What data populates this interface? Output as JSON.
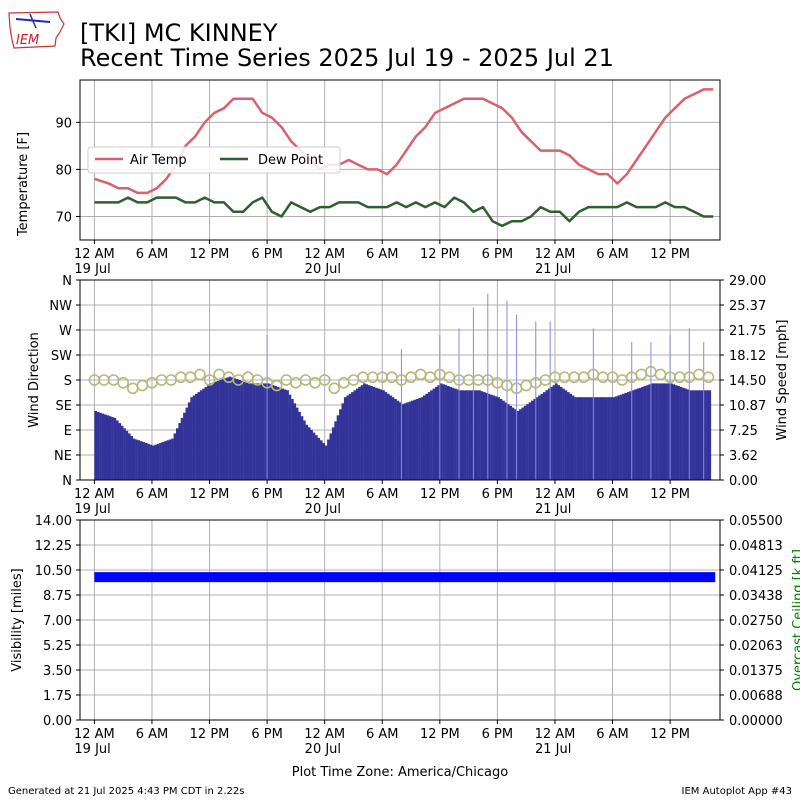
{
  "header": {
    "logo_text": "IEM",
    "station_title": "[TKI] MC KINNEY",
    "subtitle": "Recent Time Series 2025 Jul 19 - 2025 Jul 21"
  },
  "footer": {
    "generated": "Generated at 21 Jul 2025 4:43 PM CDT in 2.22s",
    "app": "IEM Autoplot App #43",
    "timezone_label": "Plot Time Zone: America/Chicago"
  },
  "colors": {
    "air_temp": "#d9626a",
    "dew_point": "#2f5f2f",
    "wind_speed": "#33339a",
    "wind_gust": "#8888e8",
    "wind_direction": "#b4b87a",
    "visibility": "#0000ff",
    "ceiling_label": "#008000",
    "grid": "#b0b0b0"
  },
  "time_axis": {
    "tick_labels": [
      "12 AM",
      "6 AM",
      "12 PM",
      "6 PM",
      "12 AM",
      "6 AM",
      "12 PM",
      "6 PM",
      "12 AM",
      "6 AM",
      "12 PM"
    ],
    "date_labels": [
      "19 Jul",
      "20 Jul",
      "21 Jul"
    ]
  },
  "chart_data": [
    {
      "type": "line",
      "ylabel": "Temperature [F]",
      "yticks": [
        70,
        80,
        90
      ],
      "ylim": [
        65,
        99
      ],
      "x_unit": "hours since 2025-07-19 00:00 CDT",
      "xlim": [
        -1.5,
        65.2
      ],
      "grid": true,
      "legend": "upper-left",
      "series": [
        {
          "name": "Air Temp",
          "x": [
            0,
            1.5,
            2.5,
            3.5,
            4.5,
            5.5,
            6.5,
            7.5,
            8.5,
            9.5,
            10.5,
            11.5,
            12.5,
            13.5,
            14.5,
            15.5,
            16.5,
            17.5,
            18.5,
            19.5,
            20.5,
            21.5,
            22.5,
            23.5,
            24.5,
            25.5,
            26.5,
            27.5,
            28.5,
            29.5,
            30.5,
            31.5,
            32.5,
            33.5,
            34.5,
            35.5,
            36.5,
            37.5,
            38.5,
            39.5,
            40.5,
            41.5,
            42.5,
            43.5,
            44.5,
            45.5,
            46.5,
            47.5,
            48.5,
            49.5,
            50.5,
            51.5,
            52.5,
            53.5,
            54.5,
            55.5,
            56.5,
            57.5,
            58.5,
            59.5,
            60.5,
            61.5,
            62.5,
            63.5,
            64.5
          ],
          "values": [
            78,
            77,
            76,
            76,
            75,
            75,
            76,
            78,
            81,
            85,
            87,
            90,
            92,
            93,
            95,
            95,
            95,
            92,
            91,
            89,
            86,
            84,
            82,
            80,
            81,
            81,
            82,
            81,
            80,
            80,
            79,
            81,
            84,
            87,
            89,
            92,
            93,
            94,
            95,
            95,
            95,
            94,
            93,
            91,
            88,
            86,
            84,
            84,
            84,
            83,
            81,
            80,
            79,
            79,
            77,
            79,
            82,
            85,
            88,
            91,
            93,
            95,
            96,
            97,
            97
          ]
        },
        {
          "name": "Dew Point",
          "x": [
            0,
            1.5,
            2.5,
            3.5,
            4.5,
            5.5,
            6.5,
            7.5,
            8.5,
            9.5,
            10.5,
            11.5,
            12.5,
            13.5,
            14.5,
            15.5,
            16.5,
            17.5,
            18.5,
            19.5,
            20.5,
            21.5,
            22.5,
            23.5,
            24.5,
            25.5,
            26.5,
            27.5,
            28.5,
            29.5,
            30.5,
            31.5,
            32.5,
            33.5,
            34.5,
            35.5,
            36.5,
            37.5,
            38.5,
            39.5,
            40.5,
            41.5,
            42.5,
            43.5,
            44.5,
            45.5,
            46.5,
            47.5,
            48.5,
            49.5,
            50.5,
            51.5,
            52.5,
            53.5,
            54.5,
            55.5,
            56.5,
            57.5,
            58.5,
            59.5,
            60.5,
            61.5,
            62.5,
            63.5,
            64.5
          ],
          "values": [
            73,
            73,
            73,
            74,
            73,
            73,
            74,
            74,
            74,
            73,
            73,
            74,
            73,
            73,
            71,
            71,
            73,
            74,
            71,
            70,
            73,
            72,
            71,
            72,
            72,
            73,
            73,
            73,
            72,
            72,
            72,
            73,
            72,
            73,
            72,
            73,
            72,
            74,
            73,
            71,
            72,
            69,
            68,
            69,
            69,
            70,
            72,
            71,
            71,
            69,
            71,
            72,
            72,
            72,
            72,
            73,
            72,
            72,
            72,
            73,
            72,
            72,
            71,
            70,
            70
          ]
        }
      ]
    },
    {
      "type": "bar",
      "ylabel": "Wind Direction",
      "ylabel_right": "Wind Speed [mph]",
      "direction_ticks": [
        "N",
        "NE",
        "E",
        "SE",
        "S",
        "SW",
        "W",
        "NW",
        "N"
      ],
      "speed_ticks": [
        "0.00",
        "3.62",
        "7.25",
        "10.87",
        "14.50",
        "18.12",
        "21.75",
        "25.37",
        "29.00"
      ],
      "speed_ylim": [
        0,
        29
      ],
      "direction_ylim": [
        0,
        360
      ],
      "xlim": [
        -1.5,
        65.2
      ],
      "grid": true,
      "series": [
        {
          "name": "Wind Speed",
          "x": [
            0,
            2,
            4,
            6,
            8,
            10,
            12,
            14,
            16,
            18,
            20,
            22,
            24,
            26,
            28,
            30,
            32,
            34,
            36,
            38,
            40,
            42,
            44,
            46,
            48,
            50,
            52,
            54,
            56,
            58,
            60,
            62,
            64
          ],
          "values": [
            10,
            9,
            6,
            5,
            6,
            12,
            14,
            15,
            14,
            14,
            13,
            8,
            5,
            12,
            14,
            13,
            11,
            12,
            14,
            13,
            13,
            12,
            10,
            12,
            14,
            12,
            12,
            12,
            13,
            14,
            14,
            13,
            13
          ]
        },
        {
          "name": "Wind Gust",
          "x": [
            18,
            32,
            36,
            38,
            39.5,
            41,
            43,
            44,
            46,
            47.5,
            52,
            56,
            58,
            60,
            62,
            63.5
          ],
          "values": [
            21,
            19,
            21,
            22,
            25,
            27,
            26,
            24,
            23,
            23,
            22,
            20,
            20,
            21,
            22,
            20
          ]
        },
        {
          "name": "Wind Direction",
          "x": [
            0,
            1,
            2,
            3,
            4,
            5,
            6,
            7,
            8,
            9,
            10,
            11,
            12,
            13,
            14,
            15,
            16,
            17,
            18,
            19,
            20,
            21,
            22,
            23,
            24,
            25,
            26,
            27,
            28,
            29,
            30,
            31,
            32,
            33,
            34,
            35,
            36,
            37,
            38,
            39,
            40,
            41,
            42,
            43,
            44,
            45,
            46,
            47,
            48,
            49,
            50,
            51,
            52,
            53,
            54,
            55,
            56,
            57,
            58,
            59,
            60,
            61,
            62,
            63,
            64
          ],
          "values": [
            180,
            180,
            180,
            175,
            165,
            170,
            175,
            180,
            180,
            185,
            185,
            190,
            180,
            190,
            185,
            180,
            185,
            180,
            175,
            170,
            180,
            175,
            180,
            175,
            180,
            165,
            175,
            180,
            185,
            185,
            185,
            185,
            180,
            185,
            190,
            185,
            190,
            185,
            180,
            180,
            180,
            180,
            175,
            170,
            165,
            170,
            175,
            180,
            185,
            185,
            185,
            185,
            190,
            185,
            185,
            180,
            185,
            190,
            195,
            190,
            185,
            185,
            185,
            190,
            185
          ]
        }
      ]
    },
    {
      "type": "bar",
      "ylabel": "Visibility [miles]",
      "ylabel_right": "Overcast Ceiling [k ft]",
      "yticks": [
        "0.00",
        "1.75",
        "3.50",
        "5.25",
        "7.00",
        "8.75",
        "10.50",
        "12.25",
        "14.00"
      ],
      "ylim": [
        0,
        14
      ],
      "ceiling_ticks": [
        "0.00000",
        "0.00688",
        "0.01375",
        "0.02063",
        "0.02750",
        "0.03438",
        "0.04125",
        "0.04813",
        "0.05500"
      ],
      "xlim": [
        -1.5,
        65.2
      ],
      "grid": true,
      "series": [
        {
          "name": "Visibility",
          "x_start": 0,
          "x_end": 64.7,
          "values": [
            10,
            10
          ]
        }
      ]
    }
  ]
}
